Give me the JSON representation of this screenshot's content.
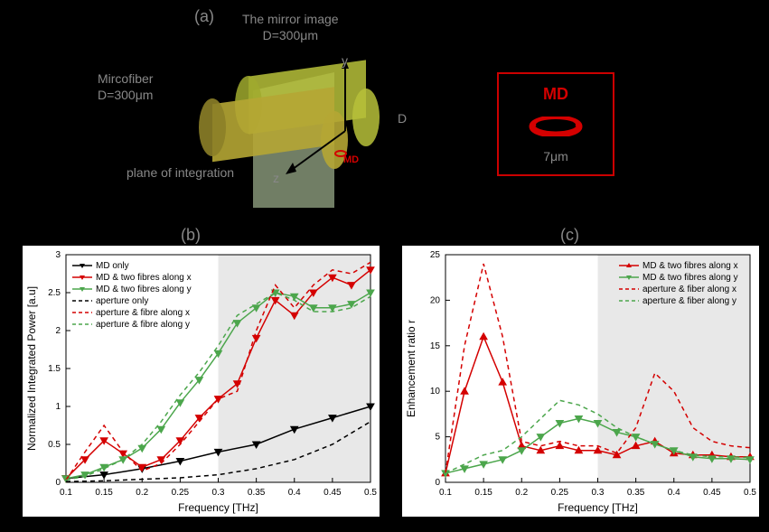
{
  "panel_labels": {
    "a": "(a)",
    "b": "(b)",
    "c": "(c)"
  },
  "diagram": {
    "microfiber_label": "Mircofiber\nD=300μm",
    "mirror_label": "The mirror image\nD=300μm",
    "plane_label": "plane of integration",
    "axis_y": "y",
    "axis_z": "z",
    "axis_D": "D",
    "MD_label": "MD",
    "ring_label_top": "MD",
    "ring_label_bottom": "7μm",
    "cylinder_color_front": "#b5a634",
    "cylinder_color_back": "#b7c139",
    "plane_color": "#cde6b8"
  },
  "plot_b": {
    "type": "line-scatter",
    "xlabel": "Frequency [THz]",
    "ylabel": "Normalized Integrated Power [a.u]",
    "xlim": [
      0.1,
      0.5
    ],
    "ylim": [
      0,
      3
    ],
    "xticks": [
      0.1,
      0.15,
      0.2,
      0.25,
      0.3,
      0.35,
      0.4,
      0.45,
      0.5
    ],
    "yticks": [
      0,
      0.5,
      1,
      1.5,
      2,
      2.5,
      3
    ],
    "shade_x": [
      0.3,
      0.5
    ],
    "legend": [
      "MD only",
      "MD & two fibres along x",
      "MD & two fibres along y",
      "aperture only",
      "aperture & fibre along x",
      "aperture & fibre along y"
    ],
    "series": {
      "md_only": {
        "x": [
          0.1,
          0.15,
          0.2,
          0.25,
          0.3,
          0.35,
          0.4,
          0.45,
          0.5
        ],
        "y": [
          0.05,
          0.1,
          0.18,
          0.28,
          0.4,
          0.5,
          0.7,
          0.85,
          1.0
        ],
        "color": "#000",
        "marker": "triangle-down",
        "dash": "solid"
      },
      "md_x": {
        "x": [
          0.1,
          0.125,
          0.15,
          0.175,
          0.2,
          0.225,
          0.25,
          0.275,
          0.3,
          0.325,
          0.35,
          0.375,
          0.4,
          0.425,
          0.45,
          0.475,
          0.5
        ],
        "y": [
          0.05,
          0.3,
          0.55,
          0.38,
          0.2,
          0.3,
          0.55,
          0.85,
          1.1,
          1.3,
          1.9,
          2.4,
          2.2,
          2.5,
          2.7,
          2.6,
          2.8
        ],
        "color": "#d40000",
        "marker": "triangle-down",
        "dash": "solid"
      },
      "md_y": {
        "x": [
          0.1,
          0.125,
          0.15,
          0.175,
          0.2,
          0.225,
          0.25,
          0.275,
          0.3,
          0.325,
          0.35,
          0.375,
          0.4,
          0.425,
          0.45,
          0.475,
          0.5
        ],
        "y": [
          0.05,
          0.1,
          0.2,
          0.3,
          0.45,
          0.7,
          1.05,
          1.35,
          1.7,
          2.1,
          2.3,
          2.5,
          2.45,
          2.3,
          2.3,
          2.35,
          2.5
        ],
        "color": "#4ca64c",
        "marker": "triangle-down",
        "dash": "solid"
      },
      "ap_only": {
        "x": [
          0.1,
          0.15,
          0.2,
          0.25,
          0.3,
          0.35,
          0.4,
          0.45,
          0.5
        ],
        "y": [
          0.01,
          0.02,
          0.04,
          0.06,
          0.1,
          0.18,
          0.3,
          0.5,
          0.8
        ],
        "color": "#000",
        "marker": "none",
        "dash": "dash"
      },
      "ap_x": {
        "x": [
          0.1,
          0.125,
          0.15,
          0.175,
          0.2,
          0.225,
          0.25,
          0.275,
          0.3,
          0.325,
          0.35,
          0.375,
          0.4,
          0.425,
          0.45,
          0.475,
          0.5
        ],
        "y": [
          0.03,
          0.4,
          0.75,
          0.4,
          0.15,
          0.25,
          0.5,
          0.8,
          1.1,
          1.2,
          2.0,
          2.6,
          2.3,
          2.6,
          2.8,
          2.75,
          2.9
        ],
        "color": "#d40000",
        "marker": "none",
        "dash": "dash"
      },
      "ap_y": {
        "x": [
          0.1,
          0.125,
          0.15,
          0.175,
          0.2,
          0.225,
          0.25,
          0.275,
          0.3,
          0.325,
          0.35,
          0.375,
          0.4,
          0.425,
          0.45,
          0.475,
          0.5
        ],
        "y": [
          0.03,
          0.08,
          0.18,
          0.3,
          0.5,
          0.8,
          1.15,
          1.45,
          1.8,
          2.2,
          2.35,
          2.5,
          2.4,
          2.25,
          2.25,
          2.3,
          2.45
        ],
        "color": "#4ca64c",
        "marker": "none",
        "dash": "dash"
      }
    }
  },
  "plot_c": {
    "type": "line-scatter",
    "xlabel": "Frequency [THz]",
    "ylabel": "Enhancement ratio r",
    "xlim": [
      0.1,
      0.5
    ],
    "ylim": [
      0,
      25
    ],
    "xticks": [
      0.1,
      0.15,
      0.2,
      0.25,
      0.3,
      0.35,
      0.4,
      0.45,
      0.5
    ],
    "yticks": [
      0,
      5,
      10,
      15,
      20,
      25
    ],
    "shade_x": [
      0.3,
      0.5
    ],
    "legend": [
      "MD & two fibres along x",
      "MD & two fibres along y",
      "aperture & fiber along x",
      "aperture & fiber along y"
    ],
    "series": {
      "md_x": {
        "x": [
          0.1,
          0.125,
          0.15,
          0.175,
          0.2,
          0.225,
          0.25,
          0.275,
          0.3,
          0.325,
          0.35,
          0.375,
          0.4,
          0.425,
          0.45,
          0.475,
          0.5
        ],
        "y": [
          1,
          10,
          16,
          11,
          4,
          3.5,
          4,
          3.5,
          3.5,
          3,
          4,
          4.5,
          3.2,
          3,
          3,
          2.8,
          2.8
        ],
        "color": "#d40000",
        "marker": "triangle-up",
        "dash": "solid"
      },
      "md_y": {
        "x": [
          0.1,
          0.125,
          0.15,
          0.175,
          0.2,
          0.225,
          0.25,
          0.275,
          0.3,
          0.325,
          0.35,
          0.375,
          0.4,
          0.425,
          0.45,
          0.475,
          0.5
        ],
        "y": [
          1,
          1.5,
          2,
          2.5,
          3.5,
          5,
          6.5,
          7,
          6.5,
          5.5,
          5,
          4.2,
          3.5,
          2.8,
          2.6,
          2.6,
          2.5
        ],
        "color": "#4ca64c",
        "marker": "triangle-down",
        "dash": "solid"
      },
      "ap_x": {
        "x": [
          0.1,
          0.125,
          0.15,
          0.175,
          0.2,
          0.225,
          0.25,
          0.275,
          0.3,
          0.325,
          0.35,
          0.375,
          0.4,
          0.425,
          0.45,
          0.475,
          0.5
        ],
        "y": [
          1,
          15,
          24,
          16,
          4.5,
          4,
          4.5,
          4,
          4,
          3.2,
          6,
          12,
          10,
          6,
          4.5,
          4,
          3.8
        ],
        "color": "#d40000",
        "marker": "none",
        "dash": "dash"
      },
      "ap_y": {
        "x": [
          0.1,
          0.125,
          0.15,
          0.175,
          0.2,
          0.225,
          0.25,
          0.275,
          0.3,
          0.325,
          0.35,
          0.375,
          0.4,
          0.425,
          0.45,
          0.475,
          0.5
        ],
        "y": [
          1,
          2,
          3,
          3.5,
          5,
          7,
          9,
          8.5,
          7.5,
          6,
          5,
          4.2,
          3.5,
          3,
          2.8,
          2.8,
          2.7
        ],
        "color": "#4ca64c",
        "marker": "none",
        "dash": "dash"
      }
    }
  },
  "colors": {
    "bg": "#000000",
    "red": "#d40000",
    "green": "#4ca64c",
    "black": "#000000",
    "shade": "#cccccc"
  }
}
